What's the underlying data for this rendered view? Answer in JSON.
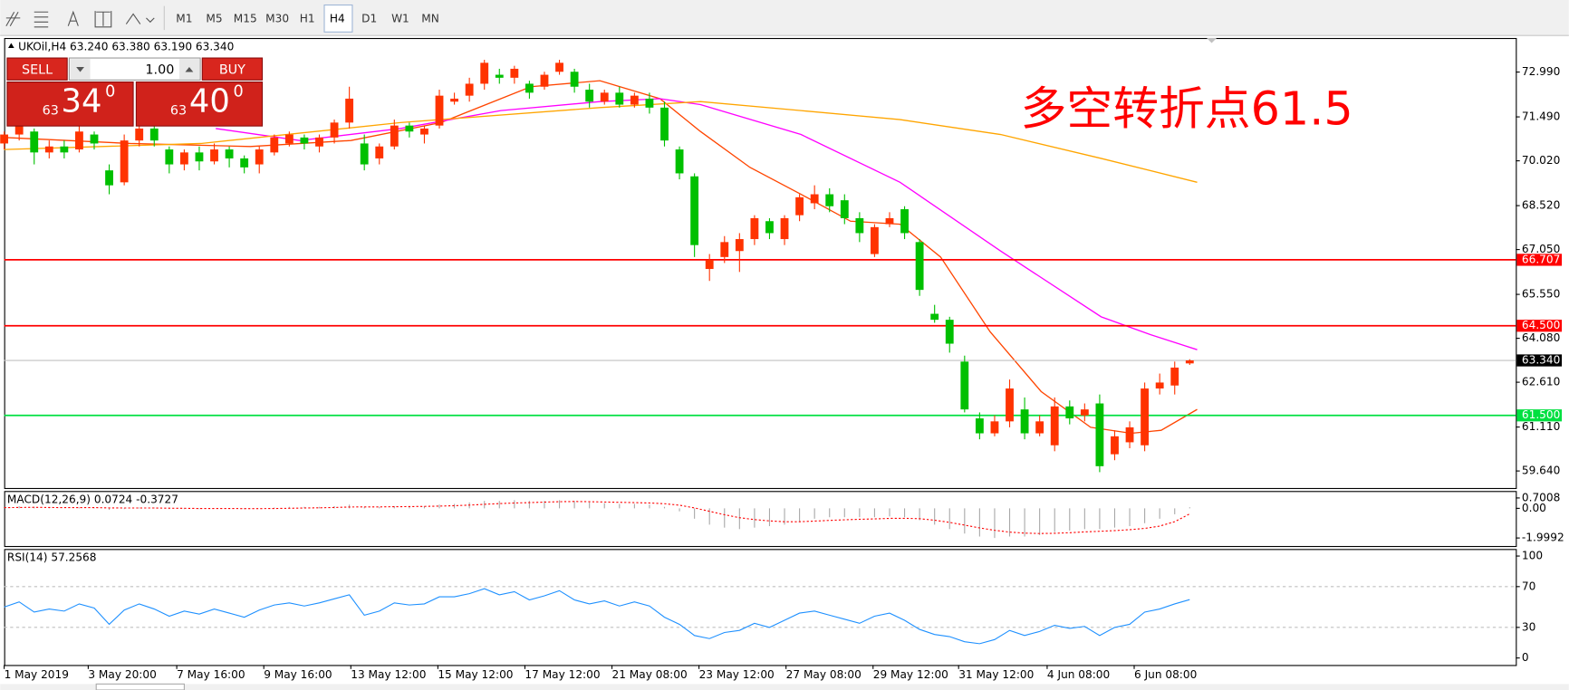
{
  "toolbar": {
    "timeframes": [
      "M1",
      "M5",
      "M15",
      "M30",
      "H1",
      "H4",
      "D1",
      "W1",
      "MN"
    ],
    "active": "H4"
  },
  "trade_panel": {
    "sell_label": "SELL",
    "buy_label": "BUY",
    "volume": "1.00",
    "sell_small": "63",
    "sell_big": "34",
    "sell_sup": "0",
    "buy_small": "63",
    "buy_big": "40",
    "buy_sup": "0"
  },
  "chart_data": [
    {
      "type": "candlestick",
      "title": "UKOil,H4  63.240 63.380 63.190 63.340",
      "annotation": "多空转折点61.5",
      "annotation_color": "#ff0000",
      "up_color": "#ff3300",
      "down_color": "#00c000",
      "xlim": [
        0,
        100.73
      ],
      "ylim": [
        59.07,
        74.13
      ],
      "yticks": [
        {
          "value": 72.99,
          "label": "72.990"
        },
        {
          "value": 71.49,
          "label": "71.490"
        },
        {
          "value": 70.02,
          "label": "70.020"
        },
        {
          "value": 68.52,
          "label": "68.520"
        },
        {
          "value": 67.05,
          "label": "67.050"
        },
        {
          "value": 65.55,
          "label": "65.550"
        },
        {
          "value": 64.08,
          "label": "64.080"
        },
        {
          "value": 62.61,
          "label": "62.610"
        },
        {
          "value": 61.11,
          "label": "61.110"
        },
        {
          "value": 59.64,
          "label": "59.640"
        }
      ],
      "candles": [
        [
          70.6,
          71.0,
          70.4,
          70.9
        ],
        [
          70.9,
          71.4,
          70.7,
          71.2
        ],
        [
          71.0,
          71.1,
          69.9,
          70.3
        ],
        [
          70.3,
          70.7,
          70.1,
          70.5
        ],
        [
          70.5,
          70.7,
          70.1,
          70.3
        ],
        [
          70.4,
          71.2,
          70.3,
          71.0
        ],
        [
          70.9,
          71.0,
          70.4,
          70.6
        ],
        [
          69.7,
          69.9,
          68.9,
          69.2
        ],
        [
          69.3,
          70.9,
          69.2,
          70.7
        ],
        [
          70.7,
          71.3,
          70.5,
          71.1
        ],
        [
          71.1,
          71.2,
          70.5,
          70.7
        ],
        [
          70.4,
          70.5,
          69.6,
          69.9
        ],
        [
          69.9,
          70.4,
          69.7,
          70.3
        ],
        [
          70.3,
          70.5,
          69.7,
          70.0
        ],
        [
          70.0,
          70.6,
          69.9,
          70.4
        ],
        [
          70.4,
          70.5,
          69.8,
          70.1
        ],
        [
          70.1,
          70.2,
          69.6,
          69.8
        ],
        [
          69.9,
          70.5,
          69.6,
          70.4
        ],
        [
          70.3,
          70.9,
          70.2,
          70.8
        ],
        [
          70.6,
          71.0,
          70.5,
          70.9
        ],
        [
          70.8,
          70.9,
          70.4,
          70.6
        ],
        [
          70.5,
          70.9,
          70.3,
          70.8
        ],
        [
          70.8,
          71.4,
          70.6,
          71.3
        ],
        [
          71.3,
          72.5,
          71.1,
          72.1
        ],
        [
          70.6,
          70.9,
          69.7,
          69.9
        ],
        [
          70.1,
          70.6,
          69.9,
          70.5
        ],
        [
          70.5,
          71.4,
          70.4,
          71.2
        ],
        [
          71.2,
          71.3,
          70.8,
          71.0
        ],
        [
          70.9,
          71.2,
          70.6,
          71.1
        ],
        [
          71.2,
          72.4,
          71.1,
          72.2
        ],
        [
          72.0,
          72.3,
          71.9,
          72.1
        ],
        [
          72.2,
          72.8,
          72.0,
          72.6
        ],
        [
          72.6,
          73.4,
          72.4,
          73.3
        ],
        [
          72.9,
          73.1,
          72.6,
          72.8
        ],
        [
          72.8,
          73.2,
          72.6,
          73.1
        ],
        [
          72.6,
          72.7,
          72.1,
          72.3
        ],
        [
          72.5,
          73.0,
          72.4,
          72.9
        ],
        [
          73.0,
          73.4,
          72.9,
          73.3
        ],
        [
          73.0,
          73.1,
          72.3,
          72.5
        ],
        [
          72.4,
          72.6,
          71.8,
          72.0
        ],
        [
          72.0,
          72.4,
          71.9,
          72.3
        ],
        [
          72.3,
          72.5,
          71.8,
          71.9
        ],
        [
          71.9,
          72.3,
          71.8,
          72.2
        ],
        [
          72.1,
          72.3,
          71.6,
          71.8
        ],
        [
          71.8,
          72.0,
          70.5,
          70.7
        ],
        [
          70.4,
          70.5,
          69.4,
          69.6
        ],
        [
          69.5,
          69.6,
          66.8,
          67.2
        ],
        [
          66.4,
          66.9,
          66.0,
          66.7
        ],
        [
          66.8,
          67.5,
          66.6,
          67.3
        ],
        [
          67.0,
          67.6,
          66.3,
          67.4
        ],
        [
          67.4,
          68.2,
          67.2,
          68.1
        ],
        [
          68.0,
          68.1,
          67.4,
          67.6
        ],
        [
          67.4,
          68.2,
          67.2,
          68.1
        ],
        [
          68.2,
          68.9,
          68.0,
          68.8
        ],
        [
          68.6,
          69.2,
          68.4,
          68.9
        ],
        [
          68.9,
          69.1,
          68.3,
          68.5
        ],
        [
          68.7,
          68.9,
          67.9,
          68.1
        ],
        [
          68.1,
          68.3,
          67.3,
          67.6
        ],
        [
          66.9,
          67.9,
          66.8,
          67.8
        ],
        [
          67.9,
          68.3,
          67.8,
          68.1
        ],
        [
          68.4,
          68.5,
          67.4,
          67.6
        ],
        [
          67.3,
          67.4,
          65.5,
          65.7
        ],
        [
          64.9,
          65.2,
          64.6,
          64.7
        ],
        [
          64.7,
          64.8,
          63.6,
          63.9
        ],
        [
          63.3,
          63.5,
          61.6,
          61.7
        ],
        [
          61.4,
          61.6,
          60.7,
          60.9
        ],
        [
          60.9,
          61.5,
          60.8,
          61.3
        ],
        [
          61.3,
          62.7,
          61.1,
          62.4
        ],
        [
          61.7,
          62.1,
          60.7,
          60.9
        ],
        [
          60.9,
          61.5,
          60.8,
          61.3
        ],
        [
          60.5,
          62.1,
          60.3,
          61.8
        ],
        [
          61.8,
          62.0,
          61.2,
          61.4
        ],
        [
          61.5,
          61.9,
          61.3,
          61.7
        ],
        [
          61.9,
          62.2,
          59.6,
          59.8
        ],
        [
          60.2,
          61.0,
          60.0,
          60.8
        ],
        [
          60.6,
          61.3,
          60.4,
          61.1
        ],
        [
          60.5,
          62.6,
          60.3,
          62.4
        ],
        [
          62.4,
          62.9,
          62.2,
          62.6
        ],
        [
          62.5,
          63.3,
          62.2,
          63.1
        ],
        [
          63.24,
          63.38,
          63.19,
          63.34
        ]
      ],
      "series": [
        {
          "color": "#ff4500",
          "x": [
            0,
            8.4,
            16.4,
            23.1,
            29.1,
            35.1,
            39.7,
            43.7,
            46.4,
            49.7,
            53.1,
            56.4,
            59.7,
            62.4,
            65.7,
            69.1,
            72.4,
            75.1,
            77.1,
            79.5
          ],
          "values": [
            70.8,
            70.6,
            70.5,
            70.7,
            71.3,
            72.5,
            72.7,
            72.1,
            71.0,
            69.8,
            68.9,
            68.0,
            67.9,
            66.8,
            64.3,
            62.3,
            61.1,
            60.9,
            61.0,
            61.7
          ]
        },
        {
          "color": "#ff00ff",
          "x": [
            14.1,
            19.7,
            26.4,
            33.1,
            39.7,
            43.7,
            46.4,
            53.1,
            59.7,
            66.4,
            73.1,
            76.4,
            79.5
          ],
          "values": [
            71.1,
            70.7,
            71.1,
            71.7,
            72.0,
            72.1,
            71.9,
            70.9,
            69.3,
            67.0,
            64.8,
            64.2,
            63.7
          ]
        },
        {
          "color": "#ffa500",
          "x": [
            0,
            13.1,
            26.4,
            39.7,
            46.4,
            53.1,
            59.7,
            66.4,
            73.1,
            79.5
          ],
          "values": [
            70.4,
            70.6,
            71.3,
            71.8,
            72.0,
            71.7,
            71.4,
            70.9,
            70.1,
            69.3
          ]
        }
      ],
      "levels": [
        {
          "value": 66.707,
          "label": "66.707",
          "color": "#ff0000",
          "label_color": "#ff0000"
        },
        {
          "value": 64.5,
          "label": "64.500",
          "color": "#ff0000",
          "label_color": "#ff0000"
        },
        {
          "value": 63.34,
          "label": "63.340",
          "color": "#c0c0c0",
          "label_color": "#000000"
        },
        {
          "value": 61.5,
          "label": "61.500",
          "color": "#00e040",
          "label_color": "#00e040"
        }
      ]
    },
    {
      "type": "macd",
      "title": "MACD(12,26,9) 0.0724 -0.3727",
      "xlim": [
        0,
        100.73
      ],
      "ylim": [
        -2.54,
        1.17
      ],
      "yticks": [
        0.7008,
        {
          "value": 0,
          "label": "0.00"
        },
        -1.9992
      ],
      "histogram_color": "#a8a8a8",
      "signal_color": "#ff0000",
      "histogram_values": [
        0.1,
        0.15,
        0.1,
        0.05,
        0.0,
        0.05,
        0.05,
        -0.1,
        -0.05,
        0.05,
        0.05,
        -0.05,
        -0.05,
        -0.05,
        0.0,
        0.0,
        -0.05,
        0.0,
        0.05,
        0.1,
        0.1,
        0.1,
        0.15,
        0.25,
        0.1,
        0.1,
        0.15,
        0.15,
        0.15,
        0.25,
        0.3,
        0.4,
        0.5,
        0.5,
        0.55,
        0.5,
        0.5,
        0.55,
        0.5,
        0.4,
        0.35,
        0.3,
        0.3,
        0.25,
        0.1,
        -0.2,
        -0.7,
        -1.1,
        -1.3,
        -1.4,
        -1.3,
        -1.2,
        -1.1,
        -0.9,
        -0.7,
        -0.6,
        -0.6,
        -0.6,
        -0.6,
        -0.55,
        -0.6,
        -0.8,
        -1.1,
        -1.4,
        -1.7,
        -1.9,
        -2.0,
        -1.9,
        -1.9,
        -1.8,
        -1.6,
        -1.5,
        -1.4,
        -1.4,
        -1.3,
        -1.2,
        -1.0,
        -0.7,
        -0.4,
        0.0724
      ],
      "signal_values": [
        0.05,
        0.06,
        0.07,
        0.06,
        0.05,
        0.05,
        0.05,
        0.03,
        0.02,
        0.02,
        0.02,
        0.01,
        0.0,
        -0.01,
        -0.01,
        -0.01,
        -0.02,
        -0.02,
        -0.01,
        0.0,
        0.02,
        0.04,
        0.06,
        0.09,
        0.1,
        0.1,
        0.11,
        0.12,
        0.13,
        0.15,
        0.18,
        0.22,
        0.27,
        0.32,
        0.36,
        0.39,
        0.42,
        0.45,
        0.46,
        0.45,
        0.43,
        0.41,
        0.39,
        0.36,
        0.31,
        0.21,
        0.03,
        -0.2,
        -0.43,
        -0.63,
        -0.76,
        -0.85,
        -0.9,
        -0.9,
        -0.86,
        -0.81,
        -0.77,
        -0.74,
        -0.71,
        -0.68,
        -0.67,
        -0.7,
        -0.8,
        -0.95,
        -1.13,
        -1.32,
        -1.48,
        -1.6,
        -1.67,
        -1.7,
        -1.68,
        -1.64,
        -1.59,
        -1.55,
        -1.5,
        -1.44,
        -1.35,
        -1.2,
        -0.9,
        -0.3727
      ]
    },
    {
      "type": "rsi",
      "title": "RSI(14) 57.2568",
      "xlim": [
        0,
        100.73
      ],
      "ylim": [
        -6.9,
        106.9
      ],
      "yticks": [
        100,
        70,
        30,
        0
      ],
      "levels": [
        70,
        30
      ],
      "color": "#1e90ff",
      "values": [
        50,
        55,
        45,
        48,
        46,
        53,
        49,
        33,
        47,
        53,
        48,
        41,
        46,
        43,
        48,
        44,
        40,
        47,
        52,
        54,
        51,
        54,
        58,
        62,
        42,
        46,
        54,
        52,
        53,
        60,
        60,
        63,
        68,
        62,
        65,
        57,
        61,
        66,
        57,
        53,
        56,
        51,
        55,
        51,
        40,
        33,
        22,
        19,
        25,
        27,
        34,
        30,
        37,
        44,
        46,
        42,
        38,
        34,
        41,
        44,
        37,
        28,
        23,
        21,
        16,
        14,
        18,
        27,
        22,
        26,
        32,
        29,
        31,
        22,
        30,
        33,
        45,
        48,
        53,
        57.2568
      ],
      "xticks": [
        {
          "value": 0,
          "label": "1 May 2019"
        },
        {
          "value": 5.6,
          "label": "3 May 20:00"
        },
        {
          "value": 11.5,
          "label": "7 May 16:00"
        },
        {
          "value": 17.3,
          "label": "9 May 16:00"
        },
        {
          "value": 23.1,
          "label": "13 May 12:00"
        },
        {
          "value": 28.9,
          "label": "15 May 12:00"
        },
        {
          "value": 34.7,
          "label": "17 May 12:00"
        },
        {
          "value": 40.5,
          "label": "21 May 08:00"
        },
        {
          "value": 46.3,
          "label": "23 May 12:00"
        },
        {
          "value": 52.1,
          "label": "27 May 08:00"
        },
        {
          "value": 57.9,
          "label": "29 May 12:00"
        },
        {
          "value": 63.6,
          "label": "31 May 12:00"
        },
        {
          "value": 69.5,
          "label": "4 Jun 08:00"
        },
        {
          "value": 75.3,
          "label": "6 Jun 08:00"
        }
      ]
    }
  ]
}
